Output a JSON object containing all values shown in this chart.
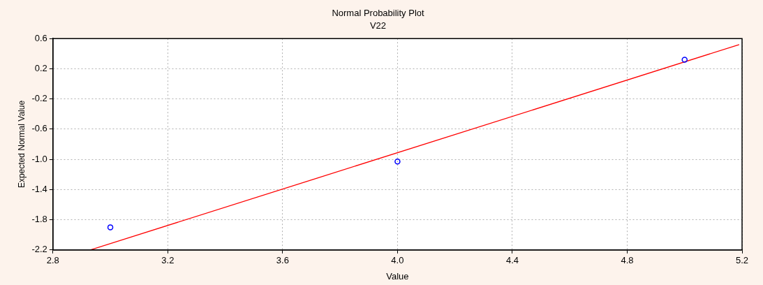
{
  "chart_data": {
    "type": "scatter",
    "title": "Normal Probability Plot",
    "subtitle": "V22",
    "xlabel": "Value",
    "ylabel": "Expected Normal Value",
    "series": [
      {
        "type": "scatter",
        "color": "#0000ff",
        "x": [
          3.0,
          4.0,
          5.0
        ],
        "values": [
          -1.9,
          -1.03,
          0.32
        ],
        "marker": "circle"
      },
      {
        "type": "line",
        "color": "#ff0000",
        "x": [
          2.93,
          5.19
        ],
        "values": [
          -2.2,
          0.52
        ],
        "marker": "none",
        "line_style": "solid"
      }
    ],
    "xlim": [
      2.8,
      5.2
    ],
    "xticks": [
      2.8,
      3.2,
      3.6,
      {
        "value": 4,
        "label": "4.0"
      },
      4.4,
      4.8,
      5.2
    ],
    "ylim": [
      -2.2,
      0.6
    ],
    "yticks": [
      -2.2,
      -1.8,
      -1.4,
      {
        "value": -1,
        "label": "-1.0"
      },
      -0.6,
      -0.2,
      0.2,
      0.6
    ],
    "grid": true,
    "legend": false
  }
}
